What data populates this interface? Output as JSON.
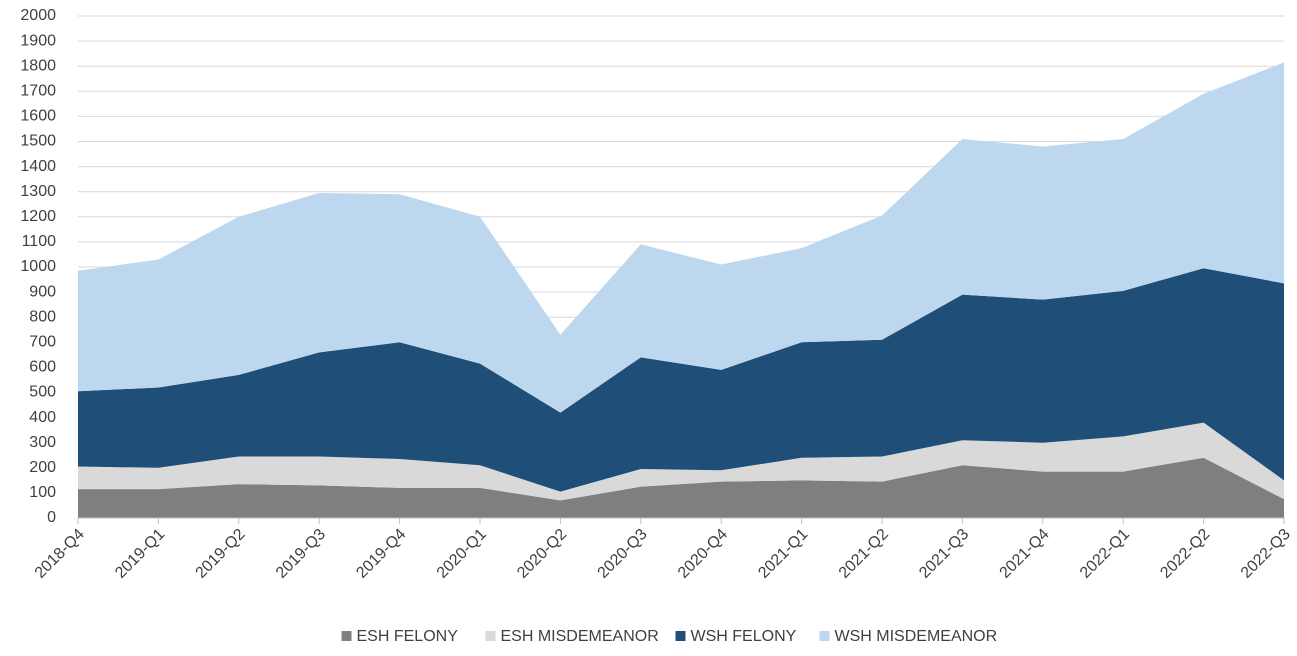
{
  "chart_data": {
    "type": "stacked_area",
    "categories": [
      "2018-Q4",
      "2019-Q1",
      "2019-Q2",
      "2019-Q3",
      "2019-Q4",
      "2020-Q1",
      "2020-Q2",
      "2020-Q3",
      "2020-Q4",
      "2021-Q1",
      "2021-Q2",
      "2021-Q3",
      "2021-Q4",
      "2022-Q1",
      "2022-Q2",
      "2022-Q3"
    ],
    "series": [
      {
        "name": "ESH FELONY",
        "color": "#7f7f7f",
        "values": [
          115,
          115,
          135,
          130,
          120,
          120,
          70,
          125,
          145,
          150,
          145,
          210,
          185,
          185,
          240,
          75
        ]
      },
      {
        "name": "ESH MISDEMEANOR",
        "color": "#d9d9d9",
        "values": [
          90,
          85,
          110,
          115,
          115,
          90,
          35,
          70,
          45,
          90,
          100,
          100,
          115,
          140,
          140,
          75
        ]
      },
      {
        "name": "WSH FELONY",
        "color": "#1f4e79",
        "values": [
          300,
          320,
          325,
          415,
          465,
          405,
          315,
          445,
          400,
          460,
          465,
          580,
          570,
          580,
          615,
          785
        ]
      },
      {
        "name": "WSH MISDEMEANOR",
        "color": "#bdd7ee",
        "values": [
          480,
          510,
          630,
          635,
          590,
          585,
          310,
          450,
          420,
          375,
          495,
          620,
          610,
          605,
          695,
          880
        ]
      }
    ],
    "ylim": [
      0,
      2000
    ],
    "yticks": [
      0,
      100,
      200,
      300,
      400,
      500,
      600,
      700,
      800,
      900,
      1000,
      1100,
      1200,
      1300,
      1400,
      1500,
      1600,
      1700,
      1800,
      1900,
      2000
    ],
    "grid": true,
    "legend": "bottom"
  }
}
